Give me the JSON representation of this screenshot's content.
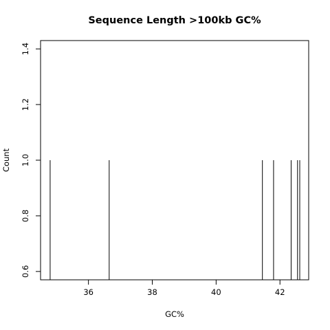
{
  "chart_data": {
    "type": "bar",
    "title": "Sequence Length >100kb GC%",
    "xlabel": "GC%",
    "ylabel": "Count",
    "xlim": [
      34.5,
      42.9
    ],
    "ylim": [
      0.57,
      1.43
    ],
    "x_ticks": [
      36,
      38,
      40,
      42
    ],
    "x_tick_labels": [
      "36",
      "38",
      "40",
      "42"
    ],
    "y_ticks": [
      0.6,
      0.8,
      1.0,
      1.2,
      1.4
    ],
    "y_tick_labels": [
      "0.6",
      "0.8",
      "1.0",
      "1.2",
      "1.4"
    ],
    "grid": false,
    "legend": "none",
    "x": [
      34.8,
      36.65,
      41.45,
      41.8,
      42.35,
      42.55,
      42.62
    ],
    "values": [
      1,
      1,
      1,
      1,
      1,
      1,
      1
    ],
    "colors": {
      "line": "#000000",
      "background": "#ffffff"
    }
  }
}
